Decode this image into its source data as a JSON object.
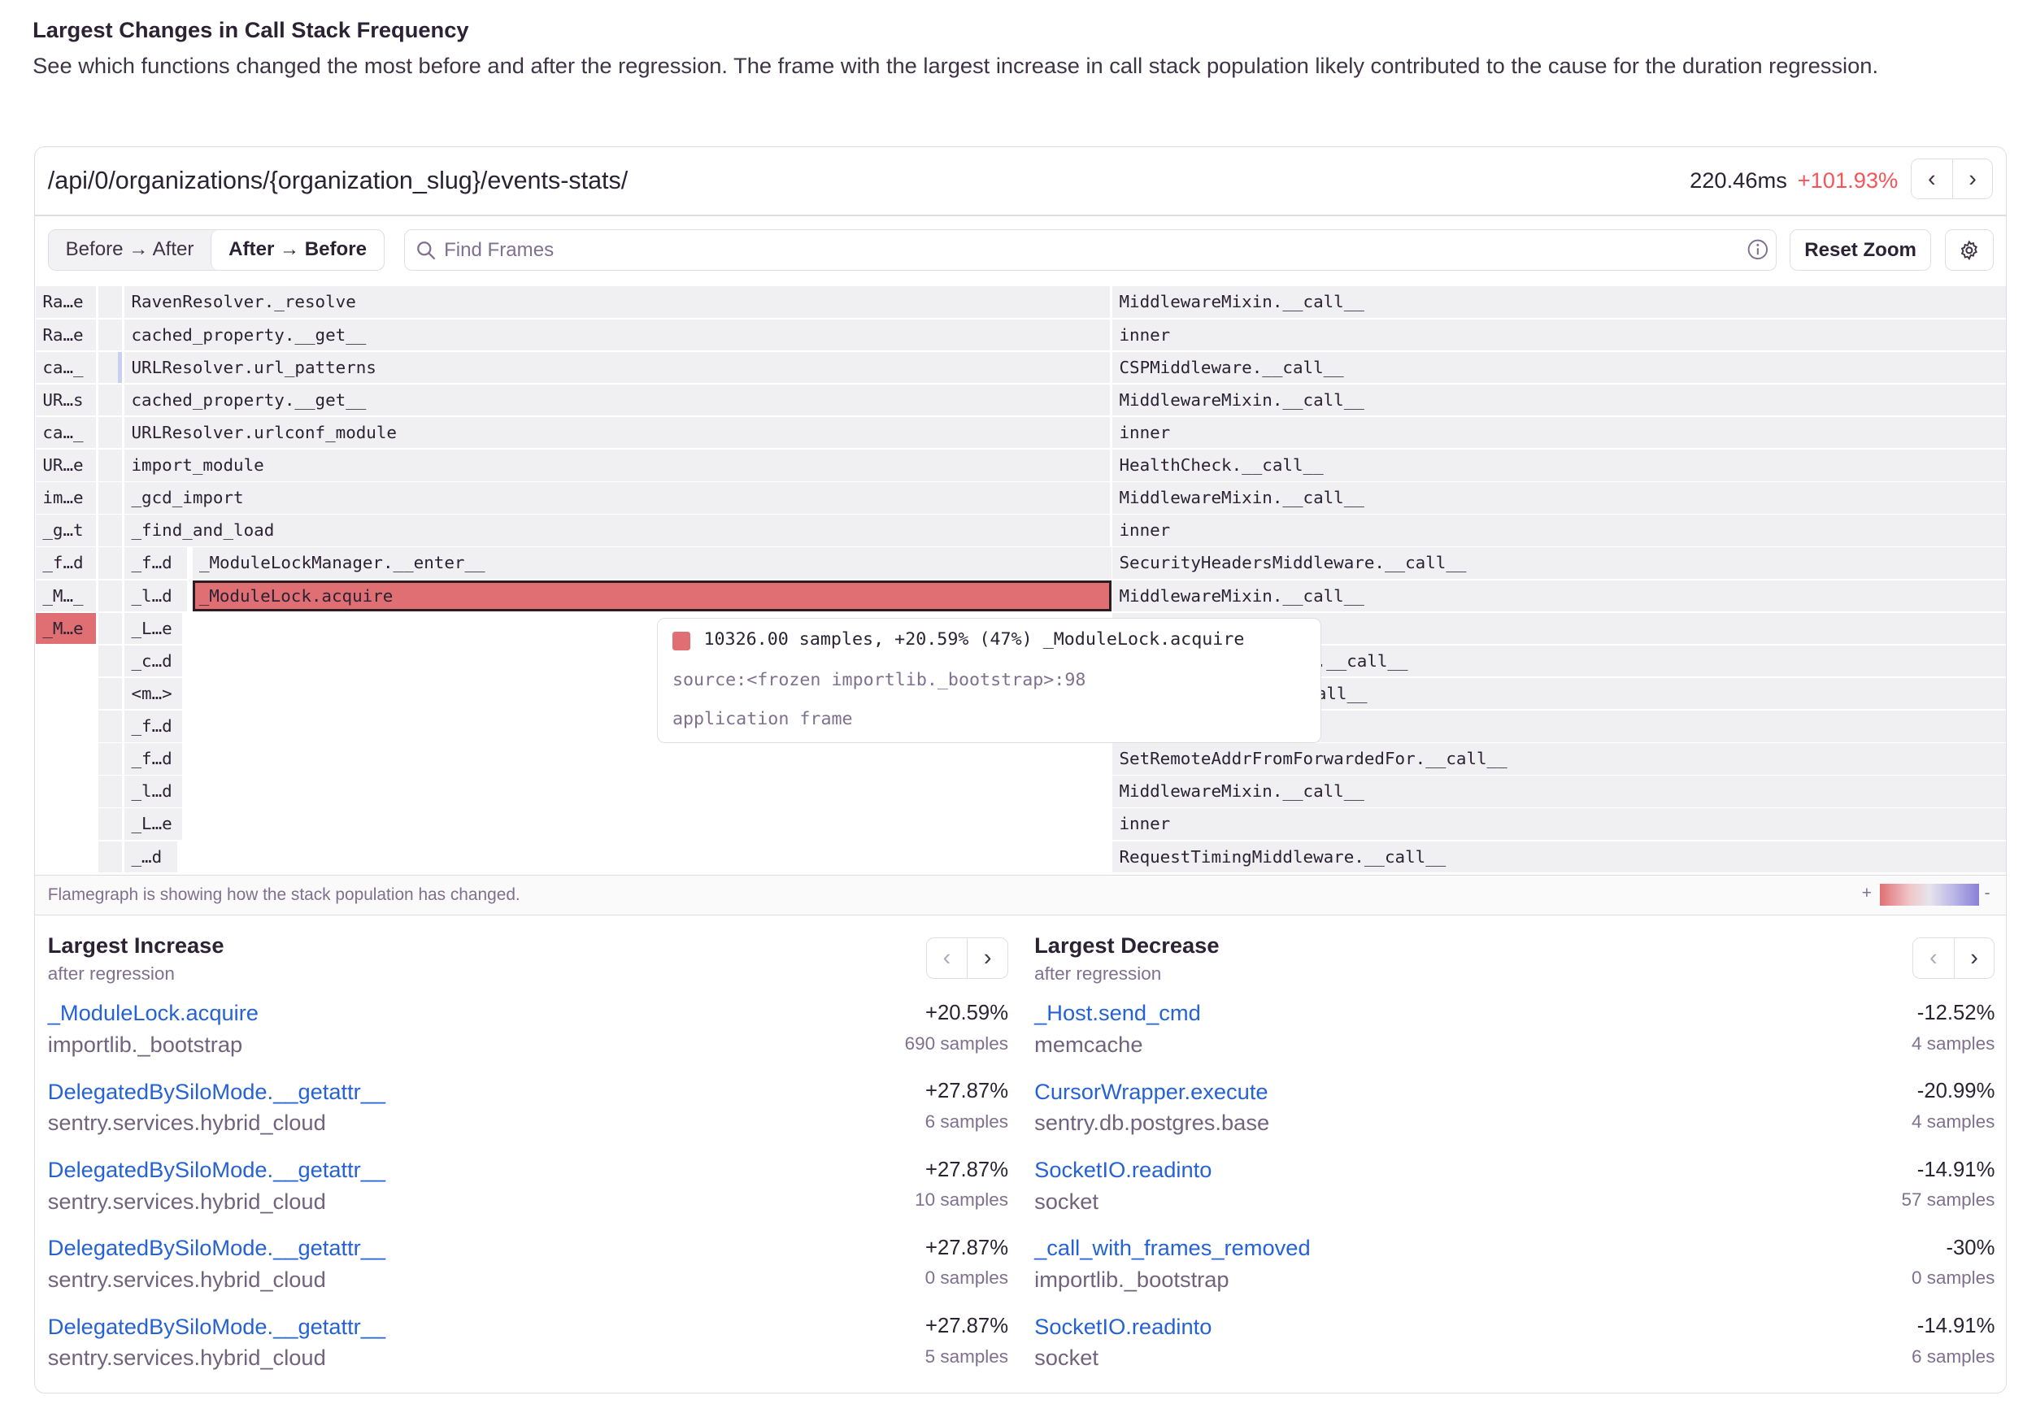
{
  "section": {
    "title": "Largest Changes in Call Stack Frequency",
    "description": "See which functions changed the most before and after the regression. The frame with the largest increase in call stack population likely contributed to the cause for the duration regression."
  },
  "panel": {
    "transaction": "/api/0/organizations/{organization_slug}/events-stats/",
    "duration": "220.46ms",
    "change": "+101.93%"
  },
  "toolbar": {
    "before_after": "Before → After",
    "after_before": "After → Before",
    "search_placeholder": "Find Frames",
    "reset_zoom": "Reset Zoom",
    "selected_mode": "After → Before"
  },
  "flamegraph": {
    "rows": [
      {
        "c0": "Ra…e",
        "c2": "RavenResolver._resolve",
        "c3": "MiddlewareMixin.__call__"
      },
      {
        "c0": "Ra…e",
        "c2": "cached_property.__get__",
        "c3": "inner"
      },
      {
        "c0": "ca…_",
        "c2": "URLResolver.url_patterns",
        "c3": "CSPMiddleware.__call__"
      },
      {
        "c0": "UR…s",
        "c2": "cached_property.__get__",
        "c3": "MiddlewareMixin.__call__"
      },
      {
        "c0": "ca…_",
        "c2": "URLResolver.urlconf_module",
        "c3": "inner"
      },
      {
        "c0": "UR…e",
        "c2": "import_module",
        "c3": "HealthCheck.__call__"
      },
      {
        "c0": "im…e",
        "c2": "_gcd_import",
        "c3": "MiddlewareMixin.__call__"
      },
      {
        "c0": "_g…t",
        "c2": "_find_and_load",
        "c3": "inner"
      },
      {
        "c0": "_f…d",
        "c2": "_f…d",
        "c2b": "_ModuleLockManager.__enter__",
        "c3": "SecurityHeadersMiddleware.__call__"
      },
      {
        "c0": "_M…_",
        "c2": "_l…d",
        "c2b": "_ModuleLock.acquire",
        "c3": "MiddlewareMixin.__call__"
      },
      {
        "c0": "_M…e",
        "c2": "_L…e",
        "c3": ""
      },
      {
        "c0": "",
        "c2": "_c…d",
        "c3": "e.__call__"
      },
      {
        "c0": "",
        "c2": "<m…>",
        "c3": "all__"
      },
      {
        "c0": "",
        "c2": "_f…d",
        "c3": ""
      },
      {
        "c0": "",
        "c2": "_f…d",
        "c3": "SetRemoteAddrFromForwardedFor.__call__"
      },
      {
        "c0": "",
        "c2": "_l…d",
        "c3": "MiddlewareMixin.__call__"
      },
      {
        "c0": "",
        "c2": "_L…e",
        "c3": "inner"
      },
      {
        "c0": "",
        "c2": "_…d",
        "c3": "RequestTimingMiddleware.__call__"
      }
    ],
    "tooltip": {
      "summary": "10326.00 samples, +20.59% (47%) _ModuleLock.acquire",
      "source": "source:<frozen importlib._bootstrap>:98",
      "kind": "application frame"
    },
    "footer": "Flamegraph is showing how the stack population has changed.",
    "legend_plus": "+",
    "legend_minus": "-",
    "colors": {
      "increase": "#e06f74",
      "decrease": "#8a7fd8",
      "neutral": "#f0f0f3"
    }
  },
  "increase": {
    "title": "Largest Increase",
    "subtitle": "after regression",
    "items": [
      {
        "name": "_ModuleLock.acquire",
        "module": "importlib._bootstrap",
        "change": "+20.59%",
        "samples": "690 samples"
      },
      {
        "name": "DelegatedBySiloMode.__getattr__",
        "module": "sentry.services.hybrid_cloud",
        "change": "+27.87%",
        "samples": "6 samples"
      },
      {
        "name": "DelegatedBySiloMode.__getattr__",
        "module": "sentry.services.hybrid_cloud",
        "change": "+27.87%",
        "samples": "10 samples"
      },
      {
        "name": "DelegatedBySiloMode.__getattr__",
        "module": "sentry.services.hybrid_cloud",
        "change": "+27.87%",
        "samples": "0 samples"
      },
      {
        "name": "DelegatedBySiloMode.__getattr__",
        "module": "sentry.services.hybrid_cloud",
        "change": "+27.87%",
        "samples": "5 samples"
      }
    ]
  },
  "decrease": {
    "title": "Largest Decrease",
    "subtitle": "after regression",
    "items": [
      {
        "name": "_Host.send_cmd",
        "module": "memcache",
        "change": "-12.52%",
        "samples": "4 samples"
      },
      {
        "name": "CursorWrapper.execute",
        "module": "sentry.db.postgres.base",
        "change": "-20.99%",
        "samples": "4 samples"
      },
      {
        "name": "SocketIO.readinto",
        "module": "socket",
        "change": "-14.91%",
        "samples": "57 samples"
      },
      {
        "name": "_call_with_frames_removed",
        "module": "importlib._bootstrap",
        "change": "-30%",
        "samples": "0 samples"
      },
      {
        "name": "SocketIO.readinto",
        "module": "socket",
        "change": "-14.91%",
        "samples": "6 samples"
      }
    ]
  },
  "icons": {
    "prev": "chevron-left-icon",
    "next": "chevron-right-icon",
    "search": "search-icon",
    "info": "info-icon",
    "settings": "gear-icon"
  }
}
